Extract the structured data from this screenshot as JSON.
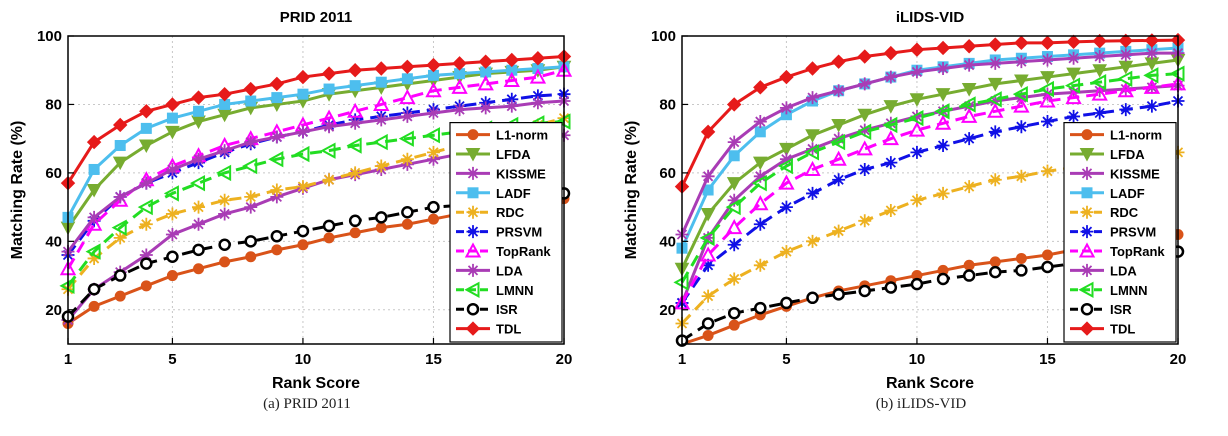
{
  "captions": [
    "(a)  PRID 2011",
    "(b)  iLIDS-VID"
  ],
  "legend_entries": [
    "L1-norm",
    "LFDA",
    "KISSME",
    "LADF",
    "RDC",
    "PRSVM",
    "TopRank",
    "LDA",
    "LMNN",
    "ISR",
    "TDL"
  ],
  "chart_data": [
    {
      "type": "line",
      "title": "PRID 2011",
      "xlabel": "Rank Score",
      "ylabel": "Matching Rate (%)",
      "xlim": [
        1,
        20
      ],
      "ylim": [
        10,
        100
      ],
      "xticks": [
        1,
        5,
        10,
        15,
        20
      ],
      "yticks": [
        20,
        40,
        60,
        80,
        100
      ],
      "grid": true,
      "legend_position": "lower-right",
      "x": [
        1,
        2,
        3,
        4,
        5,
        6,
        7,
        8,
        9,
        10,
        11,
        12,
        13,
        14,
        15,
        16,
        17,
        18,
        19,
        20
      ],
      "series": [
        {
          "name": "L1-norm",
          "color": "#D95319",
          "marker": "circle",
          "dash": "solid",
          "values": [
            16,
            21,
            24,
            27,
            30,
            32,
            34,
            35.5,
            37.5,
            39,
            41,
            42.5,
            44,
            45,
            46.5,
            48,
            49,
            50.5,
            51.5,
            52.5
          ]
        },
        {
          "name": "LFDA",
          "color": "#77AC30",
          "marker": "triangle-down",
          "dash": "solid",
          "values": [
            44,
            55,
            63,
            68,
            72,
            75,
            77,
            79,
            80,
            81,
            83,
            84,
            85,
            86,
            87,
            88,
            89,
            89.5,
            90,
            91
          ]
        },
        {
          "name": "KISSME",
          "color": "#A93CB5",
          "marker": "star",
          "dash": "solid",
          "values": [
            17,
            26,
            31,
            36,
            42,
            45,
            48,
            50,
            53,
            55.5,
            58,
            59.5,
            61,
            62.5,
            64,
            65.5,
            67,
            68,
            69.5,
            71
          ]
        },
        {
          "name": "LADF",
          "color": "#4DBEEE",
          "marker": "square",
          "dash": "solid",
          "values": [
            47,
            61,
            68,
            73,
            76,
            78,
            80,
            81,
            82,
            83,
            84.5,
            85.5,
            86.5,
            87.5,
            88.5,
            89,
            89.5,
            90,
            90.5,
            91
          ]
        },
        {
          "name": "RDC",
          "color": "#EDB120",
          "marker": "star",
          "dash": "dash",
          "values": [
            26,
            35,
            41,
            45,
            48,
            50,
            52,
            53,
            55,
            56,
            58,
            60,
            62,
            64,
            66,
            68,
            70,
            72,
            74,
            76
          ]
        },
        {
          "name": "PRSVM",
          "color": "#1010E6",
          "marker": "star",
          "dash": "dash",
          "values": [
            36,
            46,
            53,
            57,
            60,
            63,
            66,
            68.5,
            70.5,
            72,
            74,
            75.5,
            76.5,
            77.5,
            78.5,
            79.5,
            80.5,
            81.5,
            82.5,
            83
          ]
        },
        {
          "name": "TopRank",
          "color": "#FF00FF",
          "marker": "triangle-up",
          "dash": "dash",
          "values": [
            32,
            45,
            52,
            58,
            62,
            65,
            68,
            70,
            72,
            74,
            76,
            78,
            80,
            82,
            84,
            85,
            86,
            87,
            88,
            90
          ]
        },
        {
          "name": "LDA",
          "color": "#A93CB5",
          "marker": "star",
          "dash": "solid",
          "values": [
            37,
            47,
            53,
            57,
            61,
            64,
            66.5,
            69,
            70.5,
            72,
            73.5,
            74.5,
            75.5,
            76.5,
            77.5,
            78.5,
            79,
            79.5,
            80.5,
            81
          ]
        },
        {
          "name": "LMNN",
          "color": "#22DD22",
          "marker": "triangle-left",
          "dash": "dash",
          "values": [
            27,
            37,
            44,
            50,
            54,
            57,
            60,
            62,
            64,
            65.5,
            66.5,
            68,
            69,
            70,
            71,
            72,
            73,
            74,
            74.5,
            75
          ]
        },
        {
          "name": "ISR",
          "color": "#000000",
          "marker": "circle-open",
          "dash": "dash",
          "values": [
            18,
            26,
            30,
            33.5,
            35.5,
            37.5,
            39,
            40,
            41.5,
            43,
            44.5,
            46,
            47,
            48.5,
            50,
            50.5,
            51.5,
            52.5,
            53.5,
            54
          ]
        },
        {
          "name": "TDL",
          "color": "#E61A1A",
          "marker": "diamond",
          "dash": "solid",
          "values": [
            57,
            69,
            74,
            78,
            80,
            82,
            83,
            84.5,
            86,
            88,
            89,
            90,
            90.5,
            91,
            91.5,
            92,
            92.5,
            93,
            93.5,
            94
          ]
        }
      ]
    },
    {
      "type": "line",
      "title": "iLIDS-VID",
      "xlabel": "Rank Score",
      "ylabel": "Matching Rate (%)",
      "xlim": [
        1,
        20
      ],
      "ylim": [
        10,
        100
      ],
      "xticks": [
        1,
        5,
        10,
        15,
        20
      ],
      "yticks": [
        20,
        40,
        60,
        80,
        100
      ],
      "grid": true,
      "legend_position": "lower-right",
      "x": [
        1,
        2,
        3,
        4,
        5,
        6,
        7,
        8,
        9,
        10,
        11,
        12,
        13,
        14,
        15,
        16,
        17,
        18,
        19,
        20
      ],
      "series": [
        {
          "name": "L1-norm",
          "color": "#D95319",
          "marker": "circle",
          "dash": "solid",
          "values": [
            9,
            12.5,
            15.5,
            18.5,
            21,
            23.5,
            25.5,
            27,
            28.5,
            30,
            31.5,
            33,
            34,
            35,
            36,
            37.5,
            38.5,
            39.5,
            41,
            42
          ]
        },
        {
          "name": "LFDA",
          "color": "#77AC30",
          "marker": "triangle-down",
          "dash": "solid",
          "values": [
            32,
            48,
            57,
            63,
            67,
            71,
            74,
            77,
            79.5,
            81.5,
            83,
            84.5,
            86,
            87,
            88,
            89,
            90,
            91,
            92,
            93
          ]
        },
        {
          "name": "KISSME",
          "color": "#A93CB5",
          "marker": "star",
          "dash": "solid",
          "values": [
            22,
            41,
            52,
            59,
            64,
            67,
            70,
            72.5,
            74.5,
            76.5,
            78,
            79.5,
            81,
            82,
            83,
            83.5,
            84,
            84.5,
            85,
            85.5
          ]
        },
        {
          "name": "LADF",
          "color": "#4DBEEE",
          "marker": "square",
          "dash": "solid",
          "values": [
            38,
            55,
            65,
            72,
            77,
            81,
            84,
            86,
            88,
            90,
            91,
            92,
            93,
            93.5,
            94,
            94.5,
            95,
            95.5,
            96,
            96.5
          ]
        },
        {
          "name": "RDC",
          "color": "#EDB120",
          "marker": "star",
          "dash": "dash",
          "values": [
            16,
            24,
            29,
            33,
            37,
            40,
            43,
            46,
            49,
            52,
            54,
            56,
            58,
            59,
            60.5,
            61.5,
            62.5,
            63.5,
            64.5,
            66
          ]
        },
        {
          "name": "PRSVM",
          "color": "#1010E6",
          "marker": "star",
          "dash": "dash",
          "values": [
            22,
            33,
            39,
            45,
            50,
            54,
            58,
            61,
            63,
            66,
            68,
            70,
            72,
            73.5,
            75,
            76.5,
            77.5,
            78.5,
            79.5,
            81
          ]
        },
        {
          "name": "TopRank",
          "color": "#FF00FF",
          "marker": "triangle-up",
          "dash": "dash",
          "values": [
            22,
            36,
            44,
            51,
            57,
            61,
            64,
            67,
            70,
            72.5,
            74.5,
            76.5,
            78,
            79.5,
            81,
            82,
            83,
            84,
            85,
            86
          ]
        },
        {
          "name": "LDA",
          "color": "#A93CB5",
          "marker": "star",
          "dash": "solid",
          "values": [
            42,
            59,
            69,
            75,
            79,
            82,
            84,
            86,
            88,
            89.5,
            90.5,
            91.5,
            92,
            92.5,
            93,
            93.5,
            94,
            94.5,
            95,
            95
          ]
        },
        {
          "name": "LMNN",
          "color": "#22DD22",
          "marker": "triangle-left",
          "dash": "dash",
          "values": [
            28,
            41,
            50,
            57,
            62,
            66,
            69,
            72,
            74,
            76,
            78,
            80,
            81.5,
            83,
            84.5,
            85.5,
            86.5,
            87.5,
            88.5,
            89
          ]
        },
        {
          "name": "ISR",
          "color": "#000000",
          "marker": "circle-open",
          "dash": "dash",
          "values": [
            11,
            16,
            19,
            20.5,
            22,
            23.5,
            24.5,
            25.5,
            26.5,
            27.5,
            29,
            30,
            31,
            31.5,
            32.5,
            33.5,
            34.5,
            35.5,
            36,
            37
          ]
        },
        {
          "name": "TDL",
          "color": "#E61A1A",
          "marker": "diamond",
          "dash": "solid",
          "values": [
            56,
            72,
            80,
            85,
            88,
            90.5,
            92.5,
            94,
            95,
            96,
            96.5,
            97,
            97.5,
            98,
            98,
            98.3,
            98.5,
            98.6,
            98.7,
            98.8
          ]
        }
      ]
    }
  ]
}
